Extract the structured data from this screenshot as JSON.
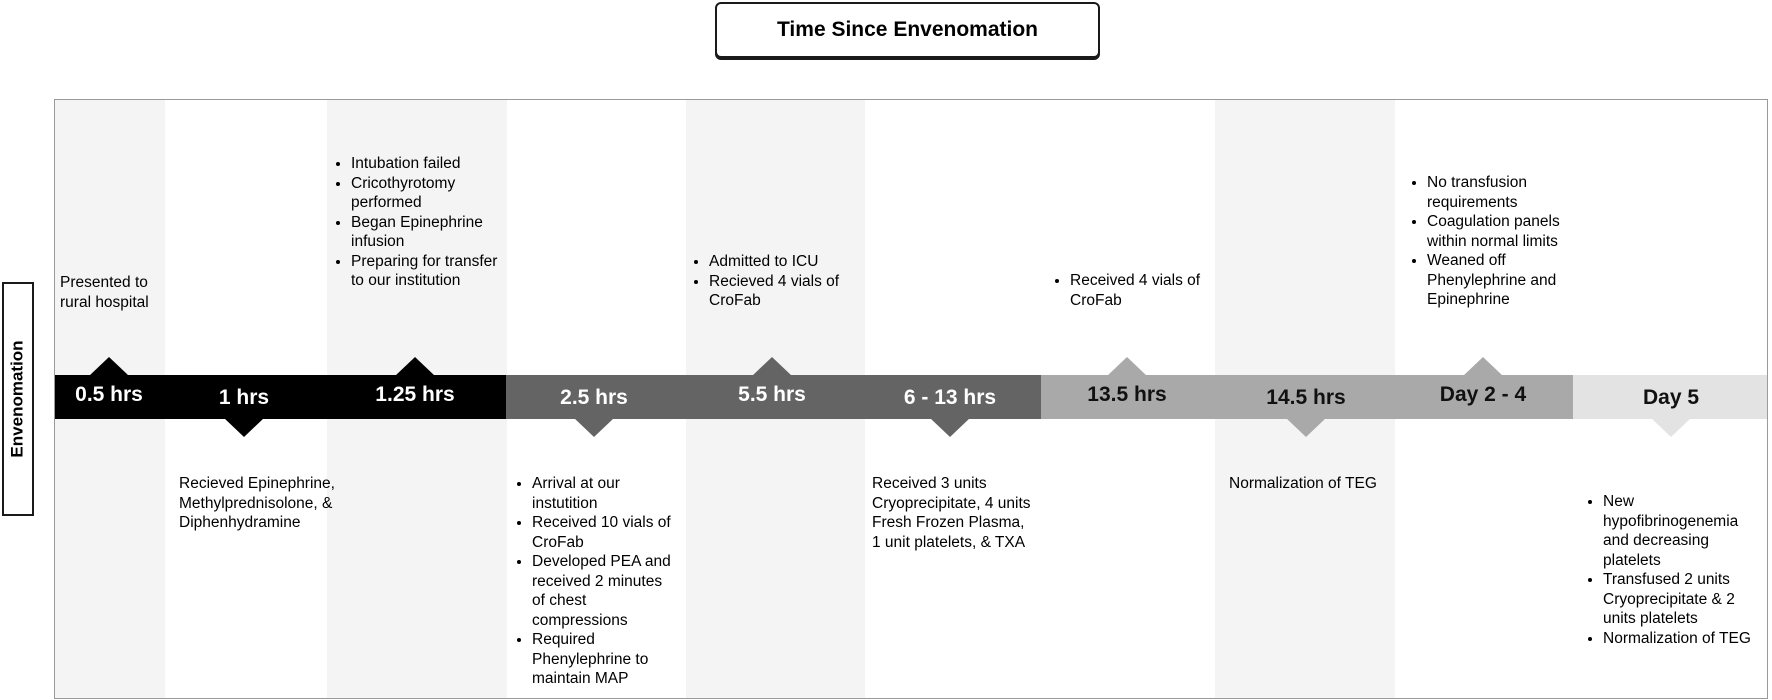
{
  "title": "Time Since Envenomation",
  "side_label": "Envenomation",
  "timeline": [
    {
      "label": "0.5 hrs",
      "side": "top",
      "text": "Presented to rural hospital",
      "bullets": []
    },
    {
      "label": "1 hrs",
      "side": "bottom",
      "text": "Recieved Epinephrine, Methylprednisolone, & Diphenhydramine",
      "bullets": []
    },
    {
      "label": "1.25 hrs",
      "side": "top",
      "text": "",
      "bullets": [
        "Intubation failed",
        "Cricothyrotomy performed",
        "Began Epinephrine infusion",
        "Preparing for transfer to our institution"
      ]
    },
    {
      "label": "2.5 hrs",
      "side": "bottom",
      "text": "",
      "bullets": [
        "Arrival at our instutition",
        "Received 10 vials of CroFab",
        "Developed PEA and received 2 minutes of chest compressions",
        "Required Phenylephrine to maintain MAP"
      ]
    },
    {
      "label": "5.5 hrs",
      "side": "top",
      "text": "",
      "bullets": [
        "Admitted to ICU",
        "Recieved 4 vials of CroFab"
      ]
    },
    {
      "label": "6 - 13 hrs",
      "side": "bottom",
      "text": "Received 3 units Cryoprecipitate, 4 units Fresh Frozen Plasma, 1 unit platelets, & TXA",
      "bullets": []
    },
    {
      "label": "13.5 hrs",
      "side": "top",
      "text": "",
      "bullets": [
        "Received 4 vials of CroFab"
      ]
    },
    {
      "label": "14.5 hrs",
      "side": "bottom",
      "text": "Normalization of TEG",
      "bullets": []
    },
    {
      "label": "Day 2 - 4",
      "side": "top",
      "text": "",
      "bullets": [
        "No transfusion requirements",
        "Coagulation panels within normal limits",
        "Weaned off Phenylephrine and Epinephrine"
      ]
    },
    {
      "label": "Day 5",
      "side": "bottom",
      "text": "",
      "bullets": [
        "New hypofibrinogenemia and decreasing platelets",
        "Transfused 2 units Cryoprecipitate & 2 units platelets",
        "Normalization of TEG"
      ]
    }
  ],
  "colors": {
    "phase_1": "#000000",
    "phase_2": "#646464",
    "phase_3": "#a9a9a9",
    "phase_4": "#e3e3e3",
    "stripe": "#f4f4f4"
  }
}
